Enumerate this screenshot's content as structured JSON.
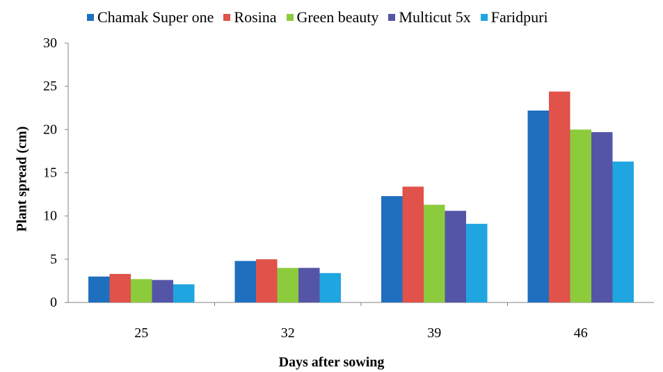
{
  "chart_data": {
    "type": "bar",
    "categories": [
      "25",
      "32",
      "39",
      "46"
    ],
    "series": [
      {
        "name": "Chamak Super one",
        "color": "#1F6FBF",
        "values": [
          3.0,
          4.8,
          12.3,
          22.2
        ]
      },
      {
        "name": "Rosina",
        "color": "#E0524A",
        "values": [
          3.3,
          5.0,
          13.4,
          24.4
        ]
      },
      {
        "name": "Green beauty",
        "color": "#8CCB3C",
        "values": [
          2.7,
          4.0,
          11.3,
          20.0
        ]
      },
      {
        "name": "Multicut 5x",
        "color": "#5555A8",
        "values": [
          2.6,
          4.0,
          10.6,
          19.7
        ]
      },
      {
        "name": "Faridpuri",
        "color": "#1FA6E0",
        "values": [
          2.1,
          3.4,
          9.1,
          16.3
        ]
      }
    ],
    "yticks": [
      "0",
      "5",
      "10",
      "15",
      "20",
      "25",
      "30"
    ],
    "ylim": [
      0,
      30
    ],
    "xlabel": "Days after sowing",
    "ylabel": "Plant spread (cm)",
    "legend": "top",
    "grid": false
  }
}
